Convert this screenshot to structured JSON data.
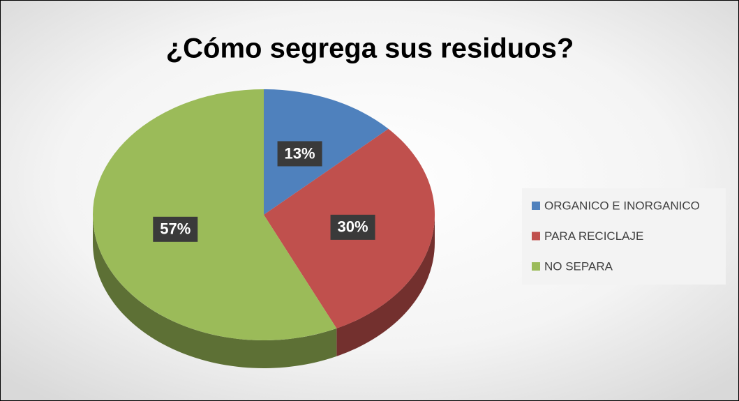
{
  "chart_data": {
    "type": "pie",
    "title": "¿Cómo segrega sus residuos?",
    "categories": [
      "ORGANICO E INORGANICO",
      "PARA RECICLAJE",
      "NO SEPARA"
    ],
    "values": [
      13,
      30,
      57
    ],
    "value_labels": [
      "13%",
      "30%",
      "57%"
    ],
    "colors": [
      "#4f81bd",
      "#c0504d",
      "#9bbb59"
    ],
    "legend": "right"
  }
}
